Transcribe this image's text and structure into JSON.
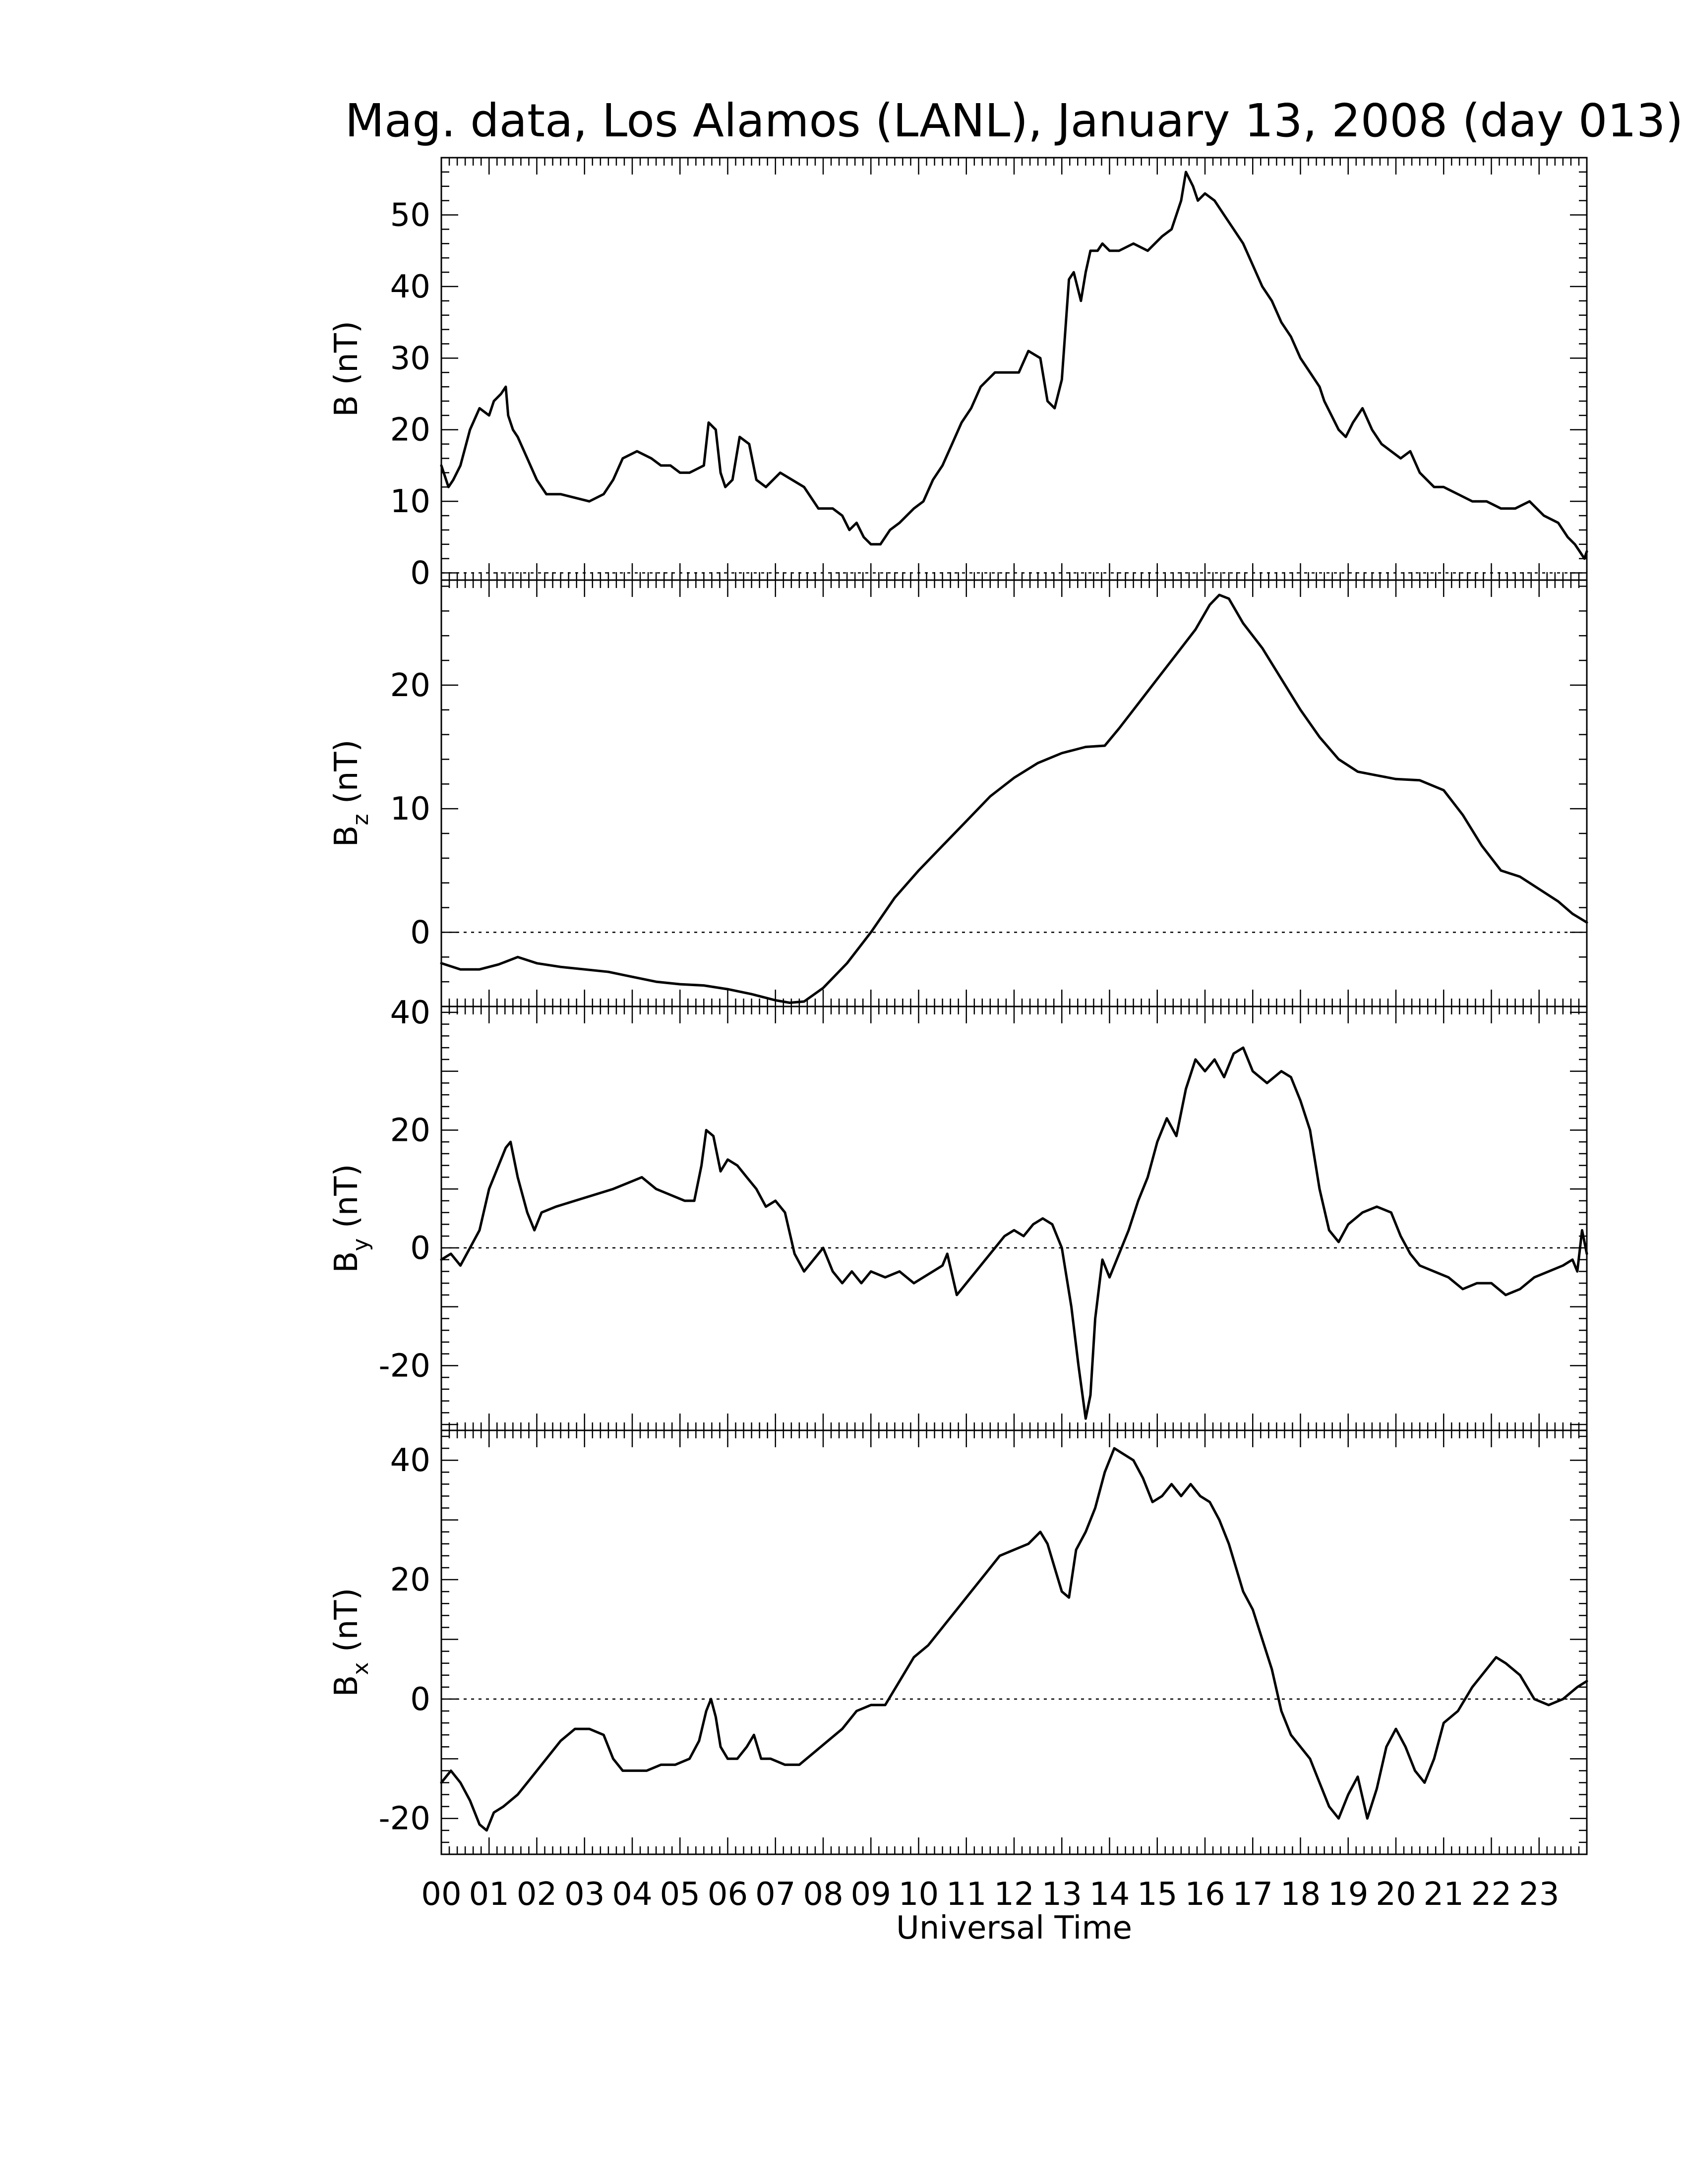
{
  "chart_data": {
    "type": "line",
    "title": "Mag. data, Los Alamos (LANL), January 13, 2008 (day 013)",
    "xlabel": "Universal Time",
    "x_unit": "hours UT",
    "xlim": [
      0,
      24
    ],
    "xticks": [
      "00",
      "01",
      "02",
      "03",
      "04",
      "05",
      "06",
      "07",
      "08",
      "09",
      "10",
      "11",
      "12",
      "13",
      "14",
      "15",
      "16",
      "17",
      "18",
      "19",
      "20",
      "21",
      "22",
      "23"
    ],
    "line_color": "#000000",
    "zero_reference": "dotted line at 0",
    "panels": [
      {
        "id": "B",
        "ylabel_main": "B",
        "ylabel_sub": "",
        "ylabel_unit": " (nT)",
        "ylim": [
          -1,
          58
        ],
        "yticks": [
          0,
          10,
          20,
          30,
          40,
          50
        ],
        "series": [
          {
            "x": [
              0.0,
              0.15,
              0.25,
              0.4,
              0.6,
              0.8,
              1.0,
              1.1,
              1.25,
              1.35,
              1.4,
              1.5,
              1.6,
              1.8,
              2.0,
              2.2,
              2.5,
              2.8,
              3.1,
              3.4,
              3.6,
              3.8,
              4.1,
              4.4,
              4.6,
              4.8,
              5.0,
              5.2,
              5.35,
              5.5,
              5.6,
              5.75,
              5.85,
              5.95,
              6.1,
              6.25,
              6.45,
              6.6,
              6.8,
              7.1,
              7.35,
              7.6,
              7.9,
              8.2,
              8.4,
              8.55,
              8.7,
              8.85,
              9.0,
              9.2,
              9.4,
              9.6,
              9.9,
              10.1,
              10.3,
              10.5,
              10.7,
              10.9,
              11.1,
              11.3,
              11.6,
              11.9,
              12.1,
              12.3,
              12.55,
              12.7,
              12.85,
              13.0,
              13.15,
              13.25,
              13.4,
              13.5,
              13.6,
              13.75,
              13.85,
              14.0,
              14.2,
              14.5,
              14.8,
              15.1,
              15.3,
              15.5,
              15.6,
              15.75,
              15.85,
              16.0,
              16.2,
              16.4,
              16.6,
              16.8,
              17.0,
              17.2,
              17.4,
              17.6,
              17.8,
              18.0,
              18.2,
              18.4,
              18.5,
              18.65,
              18.8,
              18.95,
              19.1,
              19.3,
              19.5,
              19.7,
              19.9,
              20.1,
              20.3,
              20.5,
              20.8,
              21.0,
              21.3,
              21.6,
              21.9,
              22.2,
              22.5,
              22.8,
              23.1,
              23.4,
              23.6,
              23.75,
              23.85,
              23.95,
              24.0
            ],
            "y": [
              15,
              12,
              13,
              15,
              20,
              23,
              22,
              24,
              25,
              26,
              22,
              20,
              19,
              16,
              13,
              11,
              11,
              10.5,
              10,
              11,
              13,
              16,
              17,
              16,
              15,
              15,
              14,
              14,
              14.5,
              15,
              21,
              20,
              14,
              12,
              13,
              19,
              18,
              13,
              12,
              14,
              13,
              12,
              9,
              9,
              8,
              6,
              7,
              5,
              4,
              4,
              6,
              7,
              9,
              10,
              13,
              15,
              18,
              21,
              23,
              26,
              28,
              28,
              28,
              31,
              30,
              24,
              23,
              27,
              41,
              42,
              38,
              42,
              45,
              45,
              46,
              45,
              45,
              46,
              45,
              47,
              48,
              52,
              56,
              54,
              52,
              53,
              52,
              50,
              48,
              46,
              43,
              40,
              38,
              35,
              33,
              30,
              28,
              26,
              24,
              22,
              20,
              19,
              21,
              23,
              20,
              18,
              17,
              16,
              17,
              14,
              12,
              12,
              11,
              10,
              10,
              9,
              9,
              10,
              8,
              7,
              5,
              4,
              3,
              2,
              3
            ]
          }
        ]
      },
      {
        "id": "Bz",
        "ylabel_main": "B",
        "ylabel_sub": "z",
        "ylabel_unit": " (nT)",
        "ylim": [
          -6,
          28.5
        ],
        "yticks": [
          0,
          10,
          20
        ],
        "series": [
          {
            "x": [
              0.0,
              0.4,
              0.8,
              1.2,
              1.6,
              2.0,
              2.5,
              3.0,
              3.5,
              4.0,
              4.5,
              5.0,
              5.5,
              6.0,
              6.5,
              7.0,
              7.3,
              7.6,
              8.0,
              8.5,
              9.0,
              9.5,
              10.0,
              10.5,
              11.0,
              11.5,
              12.0,
              12.5,
              13.0,
              13.5,
              13.9,
              14.2,
              14.6,
              15.0,
              15.4,
              15.8,
              16.1,
              16.3,
              16.5,
              16.8,
              17.2,
              17.6,
              18.0,
              18.4,
              18.8,
              19.2,
              19.6,
              20.0,
              20.5,
              21.0,
              21.4,
              21.8,
              22.2,
              22.6,
              23.0,
              23.4,
              23.7,
              24.0
            ],
            "y": [
              -2.5,
              -3.0,
              -3.0,
              -2.6,
              -2.0,
              -2.5,
              -2.8,
              -3.0,
              -3.2,
              -3.6,
              -4.0,
              -4.2,
              -4.3,
              -4.6,
              -5.0,
              -5.5,
              -5.7,
              -5.6,
              -4.5,
              -2.5,
              0.0,
              2.8,
              5.0,
              7.0,
              9.0,
              11.0,
              12.5,
              13.7,
              14.5,
              15.0,
              15.1,
              16.5,
              18.5,
              20.5,
              22.5,
              24.5,
              26.5,
              27.3,
              27.0,
              25.0,
              23.0,
              20.5,
              18.0,
              15.8,
              14.0,
              13.0,
              12.7,
              12.4,
              12.3,
              11.5,
              9.5,
              7.0,
              5.0,
              4.5,
              3.5,
              2.5,
              1.5,
              0.8
            ]
          }
        ]
      },
      {
        "id": "By",
        "ylabel_main": "B",
        "ylabel_sub": "y",
        "ylabel_unit": " (nT)",
        "ylim": [
          -31,
          41
        ],
        "yticks": [
          -20,
          0,
          20,
          40
        ],
        "series": [
          {
            "x": [
              0.0,
              0.2,
              0.4,
              0.6,
              0.8,
              1.0,
              1.2,
              1.35,
              1.45,
              1.6,
              1.8,
              1.95,
              2.1,
              2.4,
              2.8,
              3.2,
              3.6,
              3.9,
              4.2,
              4.5,
              4.8,
              5.1,
              5.3,
              5.45,
              5.55,
              5.7,
              5.85,
              6.0,
              6.2,
              6.4,
              6.6,
              6.8,
              7.0,
              7.2,
              7.4,
              7.6,
              7.8,
              8.0,
              8.2,
              8.4,
              8.6,
              8.8,
              9.0,
              9.3,
              9.6,
              9.9,
              10.1,
              10.3,
              10.5,
              10.6,
              10.8,
              11.0,
              11.2,
              11.4,
              11.6,
              11.8,
              12.0,
              12.2,
              12.4,
              12.6,
              12.8,
              13.0,
              13.2,
              13.35,
              13.5,
              13.6,
              13.7,
              13.85,
              14.0,
              14.2,
              14.4,
              14.6,
              14.8,
              15.0,
              15.2,
              15.4,
              15.6,
              15.8,
              16.0,
              16.2,
              16.4,
              16.6,
              16.8,
              17.0,
              17.3,
              17.6,
              17.8,
              18.0,
              18.2,
              18.4,
              18.6,
              18.8,
              19.0,
              19.3,
              19.6,
              19.9,
              20.1,
              20.3,
              20.5,
              20.8,
              21.1,
              21.4,
              21.7,
              22.0,
              22.3,
              22.6,
              22.9,
              23.2,
              23.5,
              23.7,
              23.8,
              23.9,
              24.0
            ],
            "y": [
              -2,
              -1,
              -3,
              0,
              3,
              10,
              14,
              17,
              18,
              12,
              6,
              3,
              6,
              7,
              8,
              9,
              10,
              11,
              12,
              10,
              9,
              8,
              8,
              14,
              20,
              19,
              13,
              15,
              14,
              12,
              10,
              7,
              8,
              6,
              -1,
              -4,
              -2,
              0,
              -4,
              -6,
              -4,
              -6,
              -4,
              -5,
              -4,
              -6,
              -5,
              -4,
              -3,
              -1,
              -8,
              -6,
              -4,
              -2,
              0,
              2,
              3,
              2,
              4,
              5,
              4,
              0,
              -10,
              -20,
              -29,
              -25,
              -12,
              -2,
              -5,
              -1,
              3,
              8,
              12,
              18,
              22,
              19,
              27,
              32,
              30,
              32,
              29,
              33,
              34,
              30,
              28,
              30,
              29,
              25,
              20,
              10,
              3,
              1,
              4,
              6,
              7,
              6,
              2,
              -1,
              -3,
              -4,
              -5,
              -7,
              -6,
              -6,
              -8,
              -7,
              -5,
              -4,
              -3,
              -2,
              -4,
              3,
              -1
            ]
          }
        ]
      },
      {
        "id": "Bx",
        "ylabel_main": "B",
        "ylabel_sub": "x",
        "ylabel_unit": " (nT)",
        "ylim": [
          -26,
          45
        ],
        "yticks": [
          -20,
          0,
          20,
          40
        ],
        "series": [
          {
            "x": [
              0.0,
              0.2,
              0.4,
              0.6,
              0.8,
              0.95,
              1.1,
              1.3,
              1.6,
              1.9,
              2.2,
              2.5,
              2.8,
              3.1,
              3.4,
              3.6,
              3.8,
              4.0,
              4.3,
              4.6,
              4.9,
              5.2,
              5.4,
              5.55,
              5.65,
              5.75,
              5.85,
              6.0,
              6.2,
              6.4,
              6.55,
              6.7,
              6.9,
              7.2,
              7.5,
              7.8,
              8.1,
              8.4,
              8.7,
              9.0,
              9.3,
              9.6,
              9.9,
              10.2,
              10.5,
              10.8,
              11.1,
              11.4,
              11.7,
              12.0,
              12.3,
              12.55,
              12.7,
              12.85,
              13.0,
              13.15,
              13.3,
              13.5,
              13.7,
              13.9,
              14.1,
              14.3,
              14.5,
              14.7,
              14.9,
              15.1,
              15.3,
              15.5,
              15.7,
              15.9,
              16.1,
              16.3,
              16.5,
              16.8,
              17.0,
              17.2,
              17.4,
              17.6,
              17.8,
              18.0,
              18.2,
              18.4,
              18.6,
              18.8,
              19.0,
              19.2,
              19.4,
              19.6,
              19.8,
              20.0,
              20.2,
              20.4,
              20.6,
              20.8,
              21.0,
              21.3,
              21.6,
              21.9,
              22.1,
              22.3,
              22.6,
              22.9,
              23.2,
              23.5,
              23.8,
              24.0
            ],
            "y": [
              -14,
              -12,
              -14,
              -17,
              -21,
              -22,
              -19,
              -18,
              -16,
              -13,
              -10,
              -7,
              -5,
              -5,
              -6,
              -10,
              -12,
              -12,
              -12,
              -11,
              -11,
              -10,
              -7,
              -2,
              0,
              -3,
              -8,
              -10,
              -10,
              -8,
              -6,
              -10,
              -10,
              -11,
              -11,
              -9,
              -7,
              -5,
              -2,
              -1,
              -1,
              3,
              7,
              9,
              12,
              15,
              18,
              21,
              24,
              25,
              26,
              28,
              26,
              22,
              18,
              17,
              25,
              28,
              32,
              38,
              42,
              41,
              40,
              37,
              33,
              34,
              36,
              34,
              36,
              34,
              33,
              30,
              26,
              18,
              15,
              10,
              5,
              -2,
              -6,
              -8,
              -10,
              -14,
              -18,
              -20,
              -16,
              -13,
              -20,
              -15,
              -8,
              -5,
              -8,
              -12,
              -14,
              -10,
              -4,
              -2,
              2,
              5,
              7,
              6,
              4,
              0,
              -1,
              0,
              2,
              3
            ]
          }
        ]
      }
    ]
  }
}
